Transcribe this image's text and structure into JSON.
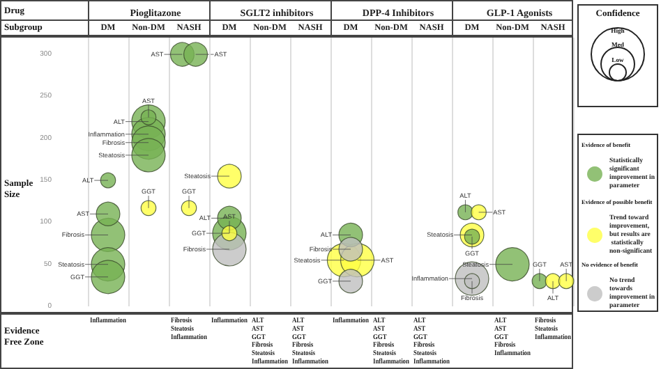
{
  "chart_data": [
    {
      "type": "bubble",
      "title": "Pioglitazone",
      "ylabel": "Sample Size",
      "categories": [
        "DM",
        "Non-DM",
        "NASH"
      ],
      "ylim": [
        0,
        320
      ],
      "yticks": [
        0,
        50,
        100,
        150,
        200,
        250,
        300
      ],
      "grid": "x",
      "series": [
        {
          "color": "#77b154",
          "x": [
            "DM",
            "DM",
            "DM",
            "DM",
            "DM",
            "Non-DM",
            "Non-DM",
            "Non-DM",
            "Non-DM",
            "Non-DM",
            "NASH",
            "NASH"
          ],
          "values": [
            150,
            110,
            85,
            50,
            35,
            225,
            220,
            205,
            195,
            180,
            300,
            300
          ],
          "sizes": [
            0.2,
            0.5,
            1,
            1,
            1,
            0.2,
            1,
            1,
            1,
            1,
            0.5,
            0.5
          ]
        },
        {
          "color": "#ffff44",
          "x": [
            "Non-DM",
            "NASH"
          ],
          "values": [
            117,
            117
          ],
          "sizes": [
            0.2,
            0.2
          ]
        }
      ],
      "annotations": [
        "Drug",
        "Subgroup",
        "Evidence Free Zone",
        {
          "text": "ALT",
          "x": "DM",
          "y": 150
        },
        {
          "text": "AST",
          "x": "DM",
          "y": 110
        },
        {
          "text": "Fibrosis",
          "x": "DM",
          "y": 85
        },
        {
          "text": "Steatosis",
          "x": "DM",
          "y": 50
        },
        {
          "text": "GGT",
          "x": "DM",
          "y": 35
        },
        {
          "text": "AST",
          "x": "Non-DM",
          "y": 225
        },
        {
          "text": "ALT",
          "x": "Non-DM",
          "y": 220
        },
        {
          "text": "Inflammation",
          "x": "Non-DM",
          "y": 205
        },
        {
          "text": "Fibrosis",
          "x": "Non-DM",
          "y": 195
        },
        {
          "text": "Steatosis",
          "x": "Non-DM",
          "y": 180
        },
        {
          "text": "GGT",
          "x": "Non-DM",
          "y": 117
        },
        {
          "text": "AST",
          "x": "NASH",
          "y": 300
        },
        {
          "text": "AST",
          "x": "NASH",
          "y": 300
        },
        {
          "text": "GGT",
          "x": "NASH",
          "y": 117
        },
        "Inflammation",
        "Fibrosis\nSteatosis\nInflammation"
      ]
    },
    {
      "type": "bubble",
      "title": "SGLT2 inhibitors",
      "categories": [
        "DM",
        "Non-DM",
        "NASH"
      ],
      "ylim": [
        0,
        320
      ],
      "tick_labels": "x",
      "grid": "x",
      "series": [
        {
          "color": "#77b154",
          "x": [
            "DM",
            "DM"
          ],
          "values": [
            105,
            87
          ],
          "sizes": [
            0.5,
            1
          ]
        },
        {
          "color": "#ffff44",
          "x": [
            "DM",
            "DM"
          ],
          "values": [
            155,
            87
          ],
          "sizes": [
            0.5,
            0.2
          ]
        },
        {
          "color": "#bfbfbf",
          "x": [
            "DM"
          ],
          "values": [
            68
          ],
          "sizes": [
            1
          ]
        }
      ],
      "annotations": [
        {
          "text": "Steatosis",
          "x": "DM",
          "y": 155
        },
        {
          "text": "ALT",
          "x": "DM",
          "y": 105
        },
        {
          "text": "GGT",
          "x": "DM",
          "y": 87
        },
        {
          "text": "AST",
          "x": "DM",
          "y": 87
        },
        {
          "text": "Fibrosis",
          "x": "DM",
          "y": 68
        },
        "Inflammation",
        "ALT\nAST\nGGT\nFibrosis\nSteatosis\nInflammation",
        "ALT\nAST\nGGT\nFibrosis\nSteatosis\nInflammation"
      ]
    },
    {
      "type": "bubble",
      "title": "DPP-4 Inhibitors",
      "categories": [
        "DM",
        "Non-DM",
        "NASH"
      ],
      "ylim": [
        0,
        320
      ],
      "tick_labels": "x",
      "grid": "x",
      "series": [
        {
          "color": "#77b154",
          "x": [
            "DM"
          ],
          "values": [
            85
          ],
          "sizes": [
            0.5
          ]
        },
        {
          "color": "#ffff44",
          "x": [
            "DM",
            "DM"
          ],
          "values": [
            55,
            55
          ],
          "sizes": [
            1,
            1
          ]
        },
        {
          "color": "#bfbfbf",
          "x": [
            "DM",
            "DM"
          ],
          "values": [
            68,
            30
          ],
          "sizes": [
            0.5,
            0.5
          ]
        }
      ],
      "annotations": [
        {
          "text": "ALT",
          "x": "DM",
          "y": 85
        },
        {
          "text": "Steatosis",
          "x": "DM",
          "y": 55
        },
        {
          "text": "AST",
          "x": "DM",
          "y": 55
        },
        {
          "text": "Fibrosis",
          "x": "DM",
          "y": 68
        },
        {
          "text": "GGT",
          "x": "DM",
          "y": 30
        },
        "Inflammation",
        "ALT\nAST\nGGT\nFibrosis\nSteatosis\nInflammation",
        "ALT\nAST\nGGT\nFibrosis\nSteatosis\nInflammation"
      ]
    },
    {
      "type": "bubble",
      "title": "GLP-1 Agonists",
      "categories": [
        "DM",
        "Non-DM",
        "NASH"
      ],
      "ylim": [
        0,
        320
      ],
      "tick_labels": "x",
      "grid": "x",
      "legend": "right",
      "series": [
        {
          "name": "Statistically significant improvement in parameter",
          "color": "#77b154",
          "x": [
            "DM",
            "DM",
            "Non-DM",
            "NASH"
          ],
          "values": [
            112,
            83,
            50,
            30
          ],
          "sizes": [
            0.2,
            0.2,
            1,
            0.2
          ]
        },
        {
          "name": "Trend toward improvement, but results are statistically non-significant",
          "color": "#ffff44",
          "x": [
            "DM",
            "DM",
            "NASH",
            "NASH"
          ],
          "values": [
            112,
            85,
            30,
            30
          ],
          "sizes": [
            0.2,
            0.5,
            0.2,
            0.2
          ]
        },
        {
          "name": "No trend towards improvement in parameter",
          "color": "#bfbfbf",
          "x": [
            "DM",
            "DM"
          ],
          "values": [
            33,
            30
          ],
          "sizes": [
            1,
            0.2
          ]
        }
      ],
      "annotations": [
        "Confidence",
        "High",
        "Med",
        "Low",
        "Evidence of benefit",
        "Evidence of possible benefit",
        "No evidence of benefit",
        {
          "text": "ALT",
          "x": "DM",
          "y": 112
        },
        {
          "text": "AST",
          "x": "DM",
          "y": 112
        },
        {
          "text": "GGT",
          "x": "DM",
          "y": 83
        },
        {
          "text": "Steatosis",
          "x": "DM",
          "y": 85
        },
        {
          "text": "Inflammation",
          "x": "DM",
          "y": 33
        },
        {
          "text": "Fibrosis",
          "x": "DM",
          "y": 30
        },
        {
          "text": "Steatosis",
          "x": "Non-DM",
          "y": 50
        },
        {
          "text": "GGT",
          "x": "NASH",
          "y": 30
        },
        {
          "text": "ALT",
          "x": "NASH",
          "y": 30
        },
        {
          "text": "AST",
          "x": "NASH",
          "y": 30
        },
        "ALT\nAST\nGGT\nFibrosis\nInflammation",
        "Fibrosis\nSteatosis\nInflammation"
      ]
    }
  ]
}
